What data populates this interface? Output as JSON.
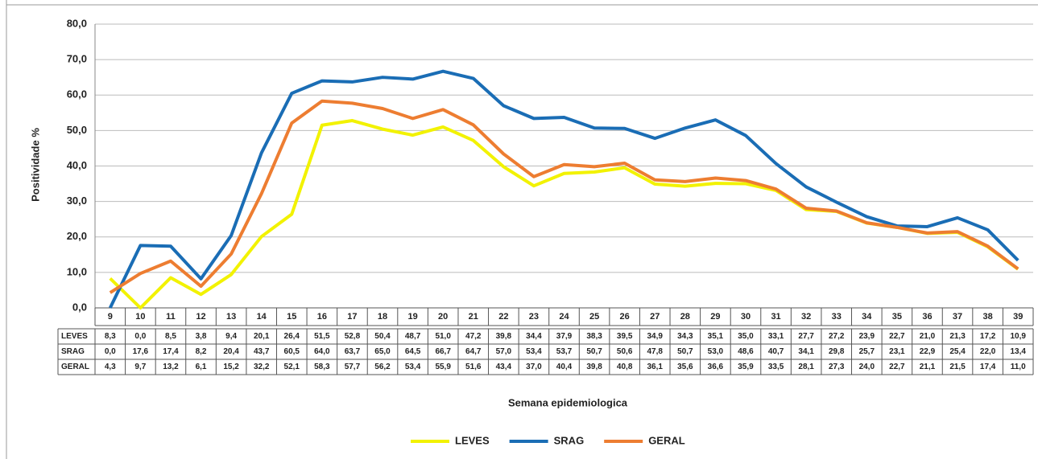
{
  "chart_data": {
    "type": "line",
    "y_label": "Positividade %",
    "x_label": "Semana epidemiologica",
    "categories": [
      "9",
      "10",
      "11",
      "12",
      "13",
      "14",
      "15",
      "16",
      "17",
      "18",
      "19",
      "20",
      "21",
      "22",
      "23",
      "24",
      "25",
      "26",
      "27",
      "28",
      "29",
      "30",
      "31",
      "32",
      "33",
      "34",
      "35",
      "36",
      "37",
      "38",
      "39"
    ],
    "series": [
      {
        "name": "LEVES",
        "color": "#f2f200",
        "values": [
          8.3,
          0.0,
          8.5,
          3.8,
          9.4,
          20.1,
          26.4,
          51.5,
          52.8,
          50.4,
          48.7,
          51.0,
          47.2,
          39.8,
          34.4,
          37.9,
          38.3,
          39.5,
          34.9,
          34.3,
          35.1,
          35.0,
          33.1,
          27.7,
          27.2,
          23.9,
          22.7,
          21.0,
          21.3,
          17.2,
          10.9
        ],
        "value_labels": [
          "8,3",
          "0,0",
          "8,5",
          "3,8",
          "9,4",
          "20,1",
          "26,4",
          "51,5",
          "52,8",
          "50,4",
          "48,7",
          "51,0",
          "47,2",
          "39,8",
          "34,4",
          "37,9",
          "38,3",
          "39,5",
          "34,9",
          "34,3",
          "35,1",
          "35,0",
          "33,1",
          "27,7",
          "27,2",
          "23,9",
          "22,7",
          "21,0",
          "21,3",
          "17,2",
          "10,9"
        ]
      },
      {
        "name": "SRAG",
        "color": "#1a6db5",
        "values": [
          0.0,
          17.6,
          17.4,
          8.2,
          20.4,
          43.7,
          60.5,
          64.0,
          63.7,
          65.0,
          64.5,
          66.7,
          64.7,
          57.0,
          53.4,
          53.7,
          50.7,
          50.6,
          47.8,
          50.7,
          53.0,
          48.6,
          40.7,
          34.1,
          29.8,
          25.7,
          23.1,
          22.9,
          25.4,
          22.0,
          13.4
        ],
        "value_labels": [
          "0,0",
          "17,6",
          "17,4",
          "8,2",
          "20,4",
          "43,7",
          "60,5",
          "64,0",
          "63,7",
          "65,0",
          "64,5",
          "66,7",
          "64,7",
          "57,0",
          "53,4",
          "53,7",
          "50,7",
          "50,6",
          "47,8",
          "50,7",
          "53,0",
          "48,6",
          "40,7",
          "34,1",
          "29,8",
          "25,7",
          "23,1",
          "22,9",
          "25,4",
          "22,0",
          "13,4"
        ]
      },
      {
        "name": "GERAL",
        "color": "#ed7d31",
        "values": [
          4.3,
          9.7,
          13.2,
          6.1,
          15.2,
          32.2,
          52.1,
          58.3,
          57.7,
          56.2,
          53.4,
          55.9,
          51.6,
          43.4,
          37.0,
          40.4,
          39.8,
          40.8,
          36.1,
          35.6,
          36.6,
          35.9,
          33.5,
          28.1,
          27.3,
          24.0,
          22.7,
          21.1,
          21.5,
          17.4,
          11.0
        ],
        "value_labels": [
          "4,3",
          "9,7",
          "13,2",
          "6,1",
          "15,2",
          "32,2",
          "52,1",
          "58,3",
          "57,7",
          "56,2",
          "53,4",
          "55,9",
          "51,6",
          "43,4",
          "37,0",
          "40,4",
          "39,8",
          "40,8",
          "36,1",
          "35,6",
          "36,6",
          "35,9",
          "33,5",
          "28,1",
          "27,3",
          "24,0",
          "22,7",
          "21,1",
          "21,5",
          "17,4",
          "11,0"
        ]
      }
    ],
    "ylim": [
      0,
      80
    ],
    "yticks": [
      {
        "value": 0,
        "label": "0,0"
      },
      {
        "value": 10,
        "label": "10,0"
      },
      {
        "value": 20,
        "label": "20,0"
      },
      {
        "value": 30,
        "label": "30,0"
      },
      {
        "value": 40,
        "label": "40,0"
      },
      {
        "value": 50,
        "label": "50,0"
      },
      {
        "value": 60,
        "label": "60,0"
      },
      {
        "value": 70,
        "label": "70,0"
      },
      {
        "value": 80,
        "label": "80,0"
      }
    ],
    "grid": true,
    "legend": "bottom"
  }
}
